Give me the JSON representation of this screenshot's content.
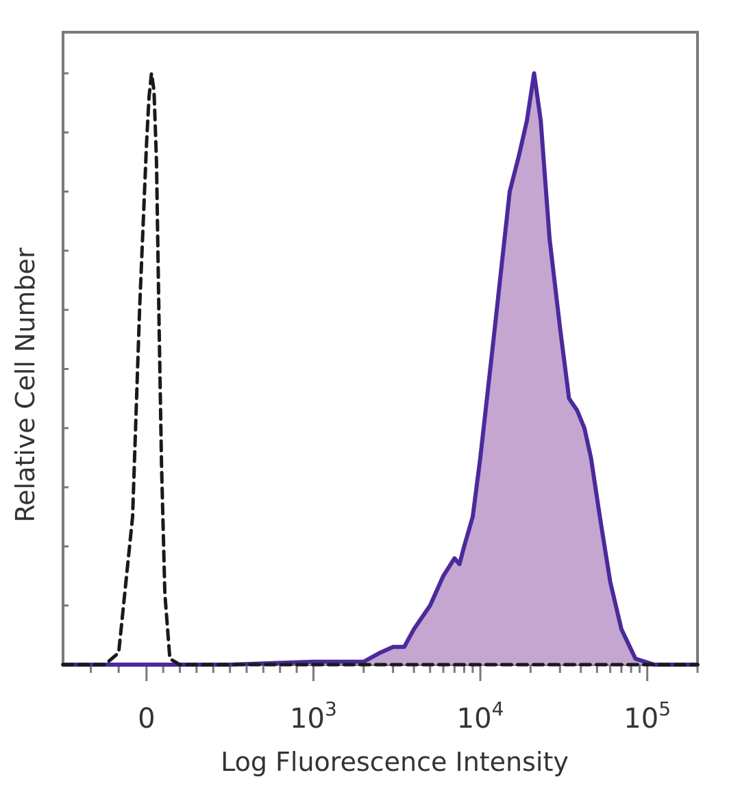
{
  "chart_data": {
    "type": "area",
    "xlabel": "Log Fluorescence Intensity",
    "ylabel": "Relative Cell Number",
    "x_scale": "biexponential",
    "xlim": [
      -300,
      200000
    ],
    "ylim": [
      0,
      100
    ],
    "grid": false,
    "legend": "none",
    "x_ticks": [
      {
        "value": 0,
        "base": "0",
        "exp": ""
      },
      {
        "value": 1000,
        "base": "10",
        "exp": "3"
      },
      {
        "value": 10000,
        "base": "10",
        "exp": "4"
      },
      {
        "value": 100000,
        "base": "10",
        "exp": "5"
      }
    ],
    "series": [
      {
        "style": "dashed",
        "color": "#1a1a1a",
        "fill": "none",
        "x": [
          -300,
          -150,
          -100,
          -50,
          -25,
          0,
          15,
          30,
          45,
          60,
          75,
          90,
          110,
          140,
          200,
          400,
          1000,
          10000,
          200000
        ],
        "y": [
          0,
          0,
          2,
          25,
          60,
          88,
          96,
          100,
          97,
          85,
          58,
          34,
          12,
          1,
          0,
          0,
          0,
          0,
          0
        ]
      },
      {
        "style": "solid",
        "color": "#4b2a9b",
        "fill": "#c4a6d1",
        "x": [
          -300,
          0,
          500,
          1000,
          1500,
          2000,
          2500,
          3000,
          3500,
          4000,
          5000,
          6000,
          7000,
          7500,
          8000,
          9000,
          10000,
          12000,
          15000,
          17000,
          19000,
          21000,
          23000,
          26000,
          30000,
          34000,
          38000,
          42000,
          46000,
          52000,
          60000,
          70000,
          85000,
          110000,
          150000,
          200000
        ],
        "y": [
          0,
          0,
          0,
          0.5,
          0.5,
          0.5,
          2,
          3,
          3,
          6,
          10,
          15,
          18,
          17,
          20,
          25,
          35,
          55,
          80,
          86,
          92,
          100,
          92,
          72,
          57,
          45,
          43,
          40,
          35,
          25,
          14,
          6,
          1,
          0,
          0,
          0
        ]
      }
    ]
  }
}
